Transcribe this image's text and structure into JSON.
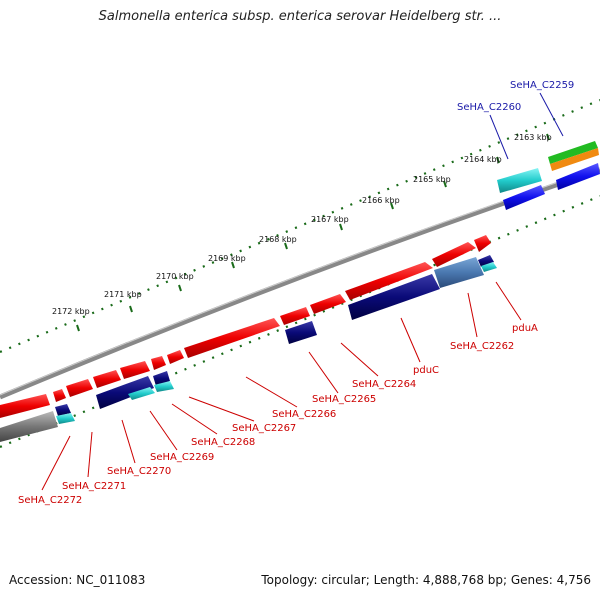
{
  "title": "Salmonella enterica subsp. enterica serovar Heidelberg str. ...",
  "footer": {
    "accession": "Accession: NC_011083",
    "summary": "Topology: circular; Length: 4,888,768 bp; Genes: 4,756"
  },
  "ticks": [
    "2163 kbp",
    "2164 kbp",
    "2165 kbp",
    "2166 kbp",
    "2167 kbp",
    "2168 kbp",
    "2169 kbp",
    "2170 kbp",
    "2171 kbp",
    "2172 kbp"
  ],
  "gene_labels_top": [
    "SeHA_C2259",
    "SeHA_C2260"
  ],
  "gene_labels_bottom": [
    "pduA",
    "SeHA_C2262",
    "pduC",
    "SeHA_C2264",
    "SeHA_C2265",
    "SeHA_C2266",
    "SeHA_C2267",
    "SeHA_C2268",
    "SeHA_C2269",
    "SeHA_C2270",
    "SeHA_C2271",
    "SeHA_C2272"
  ],
  "colors": {
    "forward_cds": "#ee0000",
    "reverse_cds": "#0a0a78",
    "cyan_feature": "#22cccc",
    "blue_feature": "#1010ee",
    "backbone": "#888888",
    "tick": "#1a6b1a",
    "label_red": "#cc0000",
    "label_blue": "#1a1aa8"
  }
}
